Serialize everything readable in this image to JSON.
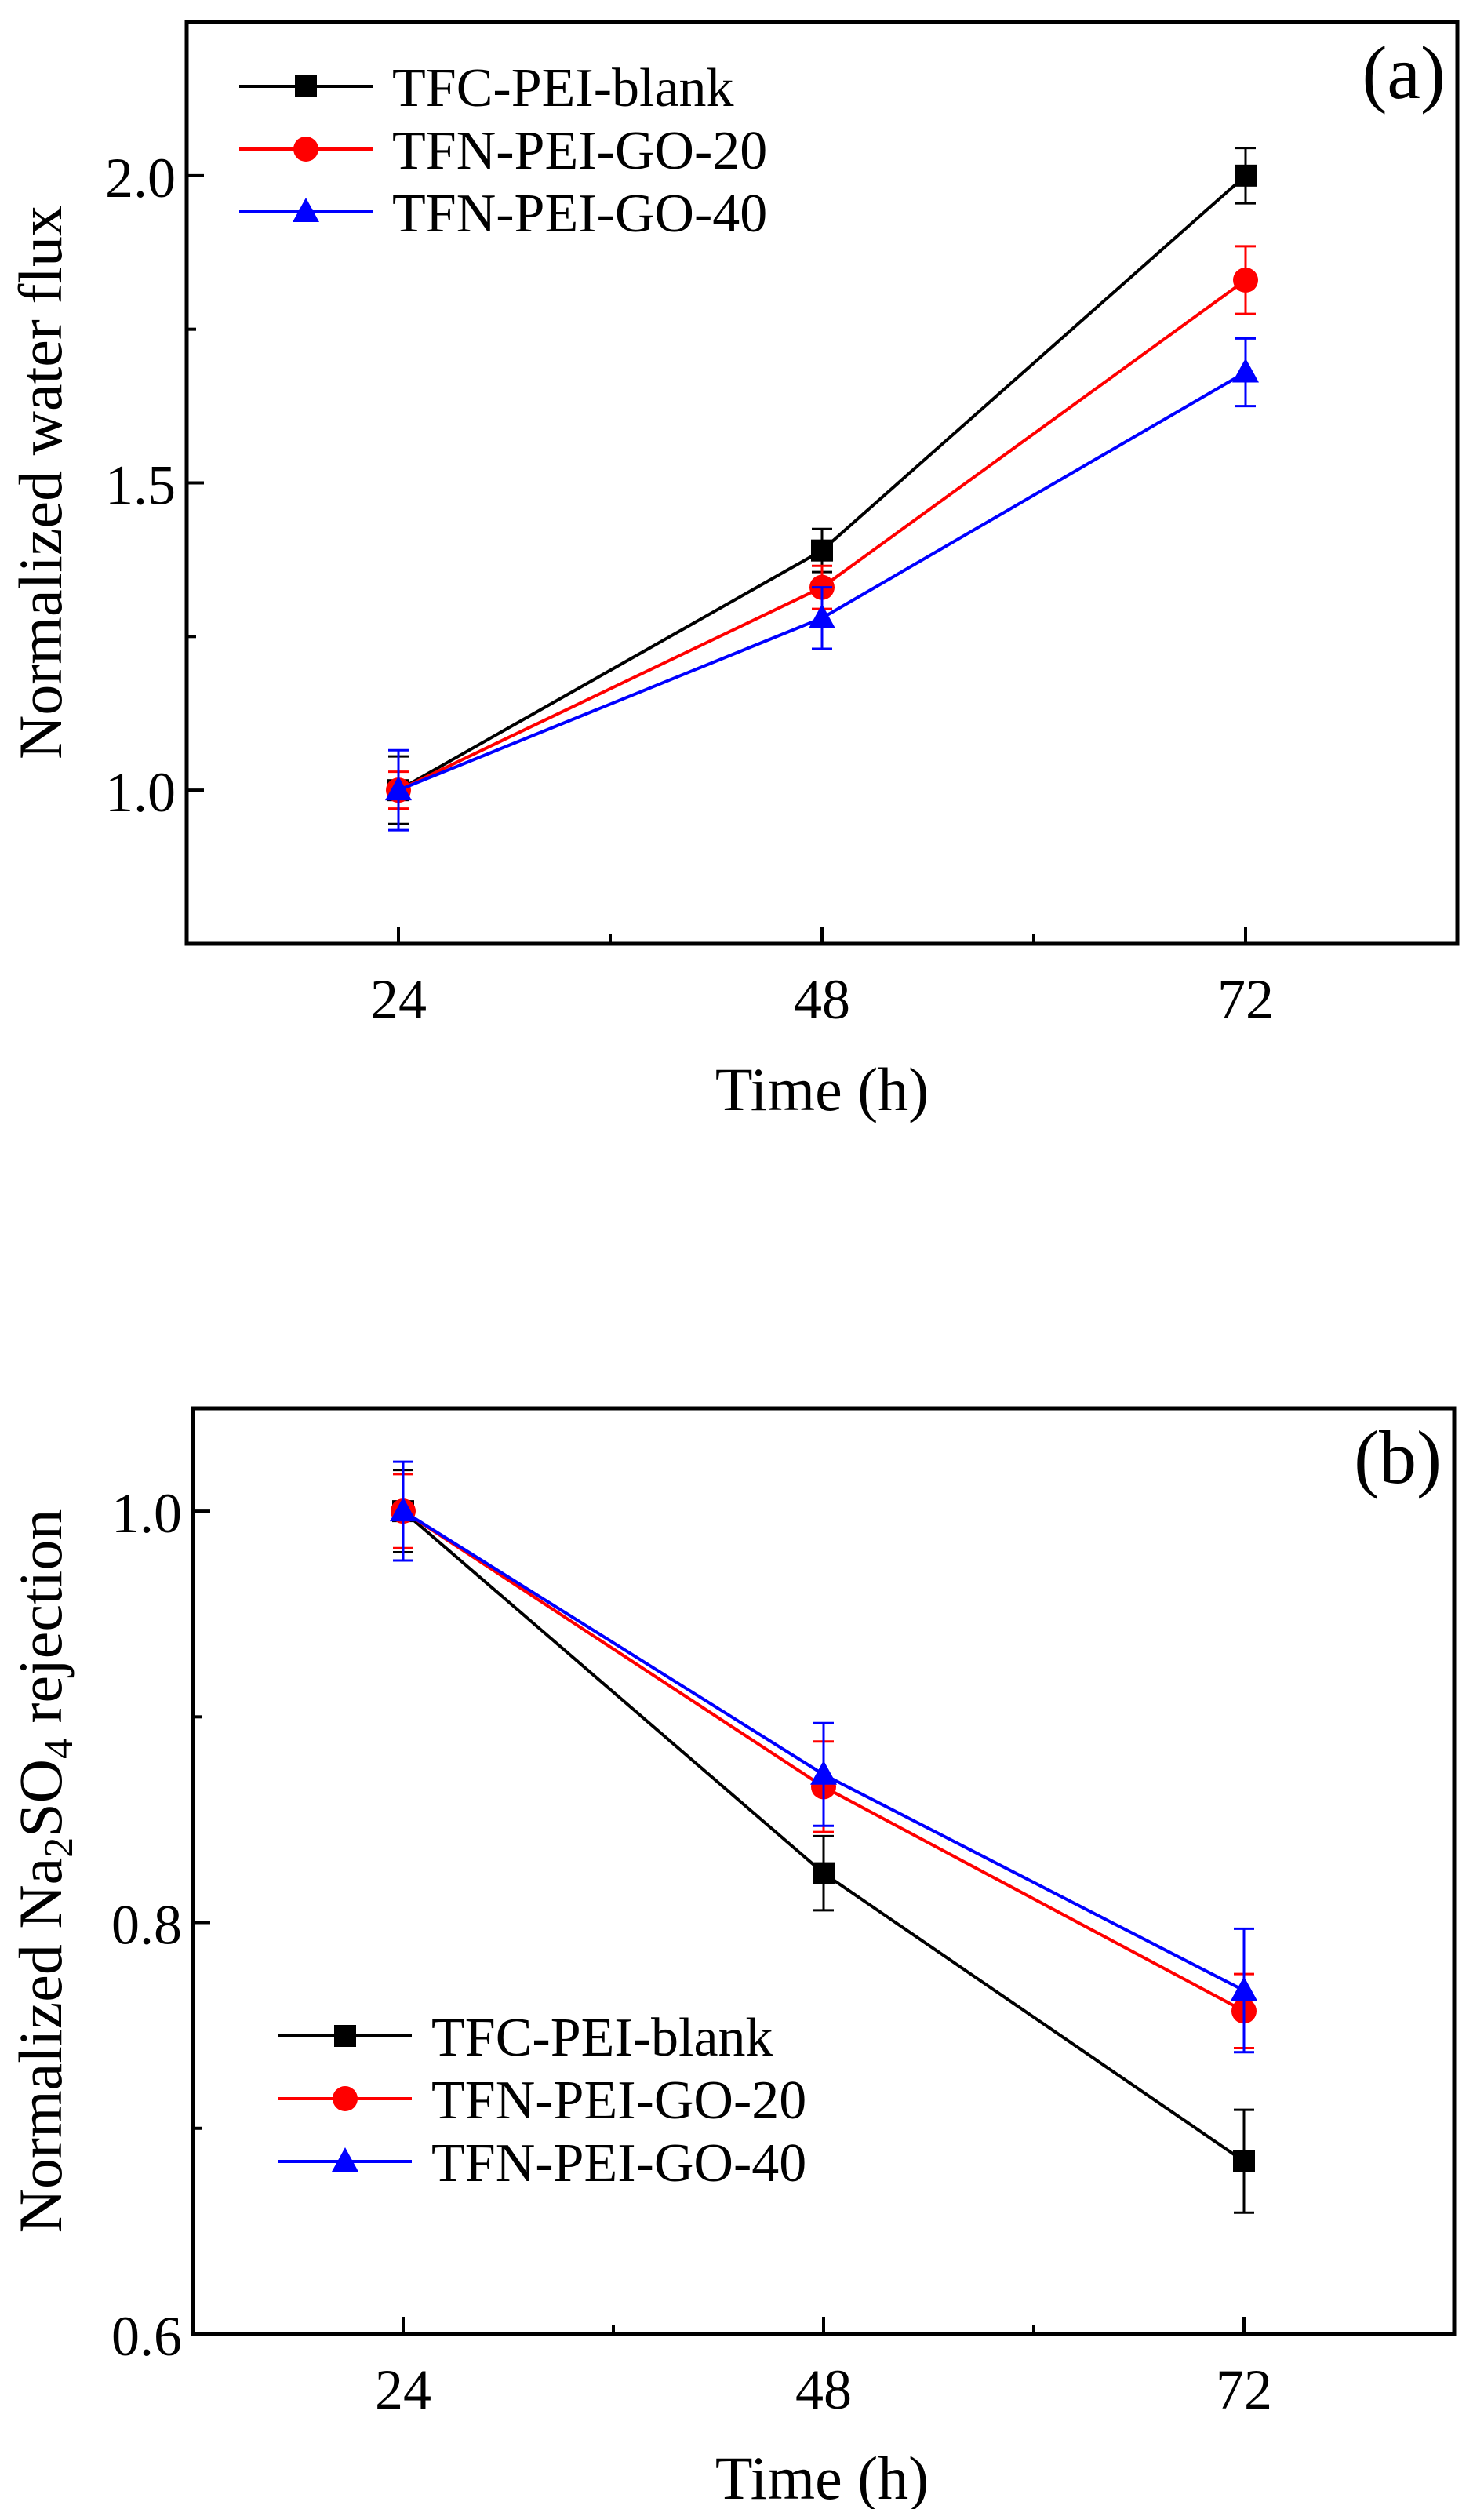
{
  "chart_data": [
    {
      "type": "line",
      "panel_label": "(a)",
      "xlabel": "Time (h)",
      "ylabel": "Normalized water flux",
      "categories": [
        24,
        48,
        72
      ],
      "x_ticks": [
        "24",
        "48",
        "72"
      ],
      "xlim": [
        12,
        84
      ],
      "ylim": [
        0.75,
        2.25
      ],
      "y_ticks": [
        "1.0",
        "1.5",
        "2.0"
      ],
      "y_tick_values": [
        1.0,
        1.5,
        2.0
      ],
      "legend_position": "top-left",
      "series": [
        {
          "name": "TFC-PEI-blank",
          "color": "#000000",
          "marker": "square",
          "values": [
            1.0,
            1.39,
            2.0
          ],
          "errors": [
            0.055,
            0.035,
            0.045
          ]
        },
        {
          "name": "TFN-PEI-GO-20",
          "color": "#ff0000",
          "marker": "circle",
          "values": [
            1.0,
            1.33,
            1.83
          ],
          "errors": [
            0.03,
            0.035,
            0.055
          ]
        },
        {
          "name": "TFN-PEI-GO-40",
          "color": "#0000ff",
          "marker": "triangle",
          "values": [
            1.0,
            1.28,
            1.68
          ],
          "errors": [
            0.065,
            0.05,
            0.055
          ]
        }
      ]
    },
    {
      "type": "line",
      "panel_label": "(b)",
      "xlabel": "Time (h)",
      "ylabel_parts": [
        "Normalized Na",
        "2",
        "SO",
        "4",
        " rejection"
      ],
      "categories": [
        24,
        48,
        72
      ],
      "x_ticks": [
        "24",
        "48",
        "72"
      ],
      "xlim": [
        12,
        84
      ],
      "ylim": [
        0.6,
        1.05
      ],
      "y_ticks": [
        "0.6",
        "0.8",
        "1.0"
      ],
      "y_tick_values": [
        0.6,
        0.8,
        1.0
      ],
      "legend_position": "bottom-left",
      "series": [
        {
          "name": "TFC-PEI-blank",
          "color": "#000000",
          "marker": "square",
          "values": [
            1.0,
            0.824,
            0.684
          ],
          "errors": [
            0.02,
            0.018,
            0.025
          ]
        },
        {
          "name": "TFN-PEI-GO-20",
          "color": "#ff0000",
          "marker": "circle",
          "values": [
            1.0,
            0.866,
            0.757
          ],
          "errors": [
            0.018,
            0.022,
            0.018
          ]
        },
        {
          "name": "TFN-PEI-GO-40",
          "color": "#0000ff",
          "marker": "triangle",
          "values": [
            1.0,
            0.872,
            0.767
          ],
          "errors": [
            0.024,
            0.025,
            0.03
          ]
        }
      ]
    }
  ]
}
